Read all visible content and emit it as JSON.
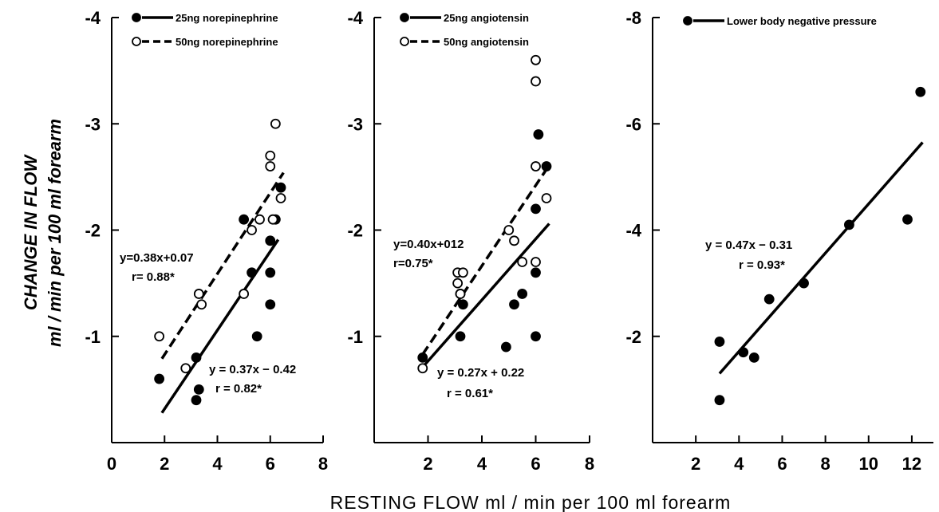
{
  "shared": {
    "xlabel": "RESTING FLOW ml / min per 100 ml forearm",
    "ylabel_line1": "CHANGE IN FLOW",
    "ylabel_line2": "ml / min per 100 ml forearm"
  },
  "chart_data": [
    {
      "type": "scatter",
      "panel": "left",
      "xlim": [
        0,
        8
      ],
      "ylim": [
        0,
        -4
      ],
      "x_ticks": [
        0,
        2,
        4,
        6,
        8
      ],
      "x_tick_labels": [
        "0",
        "2",
        "4",
        "6",
        "8"
      ],
      "y_ticks": [
        -1,
        -2,
        -3,
        -4
      ],
      "y_tick_labels": [
        "-1",
        "-2",
        "-3",
        "-4"
      ],
      "series": [
        {
          "name": "25ng norepinephrine",
          "marker": "filled",
          "line_style": "solid",
          "points": [
            [
              1.8,
              -0.6
            ],
            [
              3.2,
              -0.8
            ],
            [
              3.3,
              -0.5
            ],
            [
              3.2,
              -0.4
            ],
            [
              5.0,
              -2.1
            ],
            [
              5.3,
              -1.6
            ],
            [
              5.5,
              -1.0
            ],
            [
              6.0,
              -1.9
            ],
            [
              6.0,
              -1.6
            ],
            [
              6.0,
              -1.3
            ],
            [
              6.2,
              -2.1
            ],
            [
              6.4,
              -2.4
            ]
          ],
          "fit": {
            "x": [
              1.9,
              6.3
            ],
            "y": [
              -0.28,
              -1.91
            ]
          },
          "equation": "y = 0.37x − 0.42",
          "r_label": "r = 0.82*"
        },
        {
          "name": "50ng norepinephrine",
          "marker": "open",
          "line_style": "dashed",
          "points": [
            [
              1.8,
              -1.0
            ],
            [
              2.8,
              -0.7
            ],
            [
              3.3,
              -1.4
            ],
            [
              3.4,
              -1.3
            ],
            [
              5.0,
              -1.4
            ],
            [
              5.3,
              -2.0
            ],
            [
              5.6,
              -2.1
            ],
            [
              6.0,
              -2.7
            ],
            [
              6.0,
              -2.6
            ],
            [
              6.1,
              -2.1
            ],
            [
              6.2,
              -3.0
            ],
            [
              6.4,
              -2.3
            ]
          ],
          "fit": {
            "x": [
              1.9,
              6.5
            ],
            "y": [
              -0.79,
              -2.54
            ]
          },
          "equation": "y=0.38x+0.07",
          "r_label": "r= 0.88*"
        }
      ]
    },
    {
      "type": "scatter",
      "panel": "middle",
      "xlim": [
        0,
        8
      ],
      "ylim": [
        0,
        -4
      ],
      "x_ticks": [
        2,
        4,
        6,
        8
      ],
      "x_tick_labels": [
        "2",
        "4",
        "6",
        "8"
      ],
      "y_ticks": [
        -1,
        -2,
        -3,
        -4
      ],
      "y_tick_labels": [
        "-1",
        "-2",
        "-3",
        "-4"
      ],
      "series": [
        {
          "name": "25ng angiotensin",
          "marker": "filled",
          "line_style": "solid",
          "points": [
            [
              1.8,
              -0.8
            ],
            [
              3.2,
              -1.4
            ],
            [
              3.3,
              -1.3
            ],
            [
              3.2,
              -1.0
            ],
            [
              4.9,
              -0.9
            ],
            [
              5.2,
              -1.3
            ],
            [
              5.5,
              -1.4
            ],
            [
              6.0,
              -2.2
            ],
            [
              6.0,
              -1.6
            ],
            [
              6.0,
              -1.0
            ],
            [
              6.1,
              -2.9
            ],
            [
              6.4,
              -2.6
            ]
          ],
          "fit": {
            "x": [
              1.8,
              6.5
            ],
            "y": [
              -0.71,
              -2.06
            ]
          },
          "equation": "y = 0.27x + 0.22",
          "r_label": "r = 0.61*"
        },
        {
          "name": "50ng angiotensin",
          "marker": "open",
          "line_style": "dashed",
          "points": [
            [
              1.8,
              -0.7
            ],
            [
              3.1,
              -1.6
            ],
            [
              3.1,
              -1.5
            ],
            [
              3.2,
              -1.4
            ],
            [
              3.3,
              -1.6
            ],
            [
              5.0,
              -2.0
            ],
            [
              5.2,
              -1.9
            ],
            [
              5.5,
              -1.7
            ],
            [
              6.0,
              -3.6
            ],
            [
              6.0,
              -3.4
            ],
            [
              6.0,
              -2.6
            ],
            [
              6.0,
              -1.7
            ],
            [
              6.4,
              -2.3
            ]
          ],
          "fit": {
            "x": [
              1.8,
              6.5
            ],
            "y": [
              -0.83,
              -2.61
            ]
          },
          "equation": "y=0.40x+012",
          "r_label": "r=0.75*"
        }
      ]
    },
    {
      "type": "scatter",
      "panel": "right",
      "xlim": [
        0,
        13
      ],
      "ylim": [
        0,
        -8
      ],
      "x_ticks": [
        2,
        4,
        6,
        8,
        10,
        12
      ],
      "x_tick_labels": [
        "2",
        "4",
        "6",
        "8",
        "10",
        "12"
      ],
      "y_ticks": [
        -2,
        -4,
        -6,
        -8
      ],
      "y_tick_labels": [
        "-2",
        "-4",
        "-6",
        "-8"
      ],
      "series": [
        {
          "name": "Lower body negative pressure",
          "marker": "filled",
          "line_style": "solid",
          "points": [
            [
              3.1,
              -1.9
            ],
            [
              3.1,
              -0.8
            ],
            [
              4.2,
              -1.7
            ],
            [
              4.7,
              -1.6
            ],
            [
              5.4,
              -2.7
            ],
            [
              7.0,
              -3.0
            ],
            [
              9.1,
              -4.1
            ],
            [
              11.8,
              -4.2
            ],
            [
              12.4,
              -6.6
            ]
          ],
          "fit": {
            "x": [
              3.1,
              12.5
            ],
            "y": [
              -1.3,
              -5.65
            ]
          },
          "equation": "y = 0.47x − 0.31",
          "r_label": "r = 0.93*"
        }
      ]
    }
  ]
}
